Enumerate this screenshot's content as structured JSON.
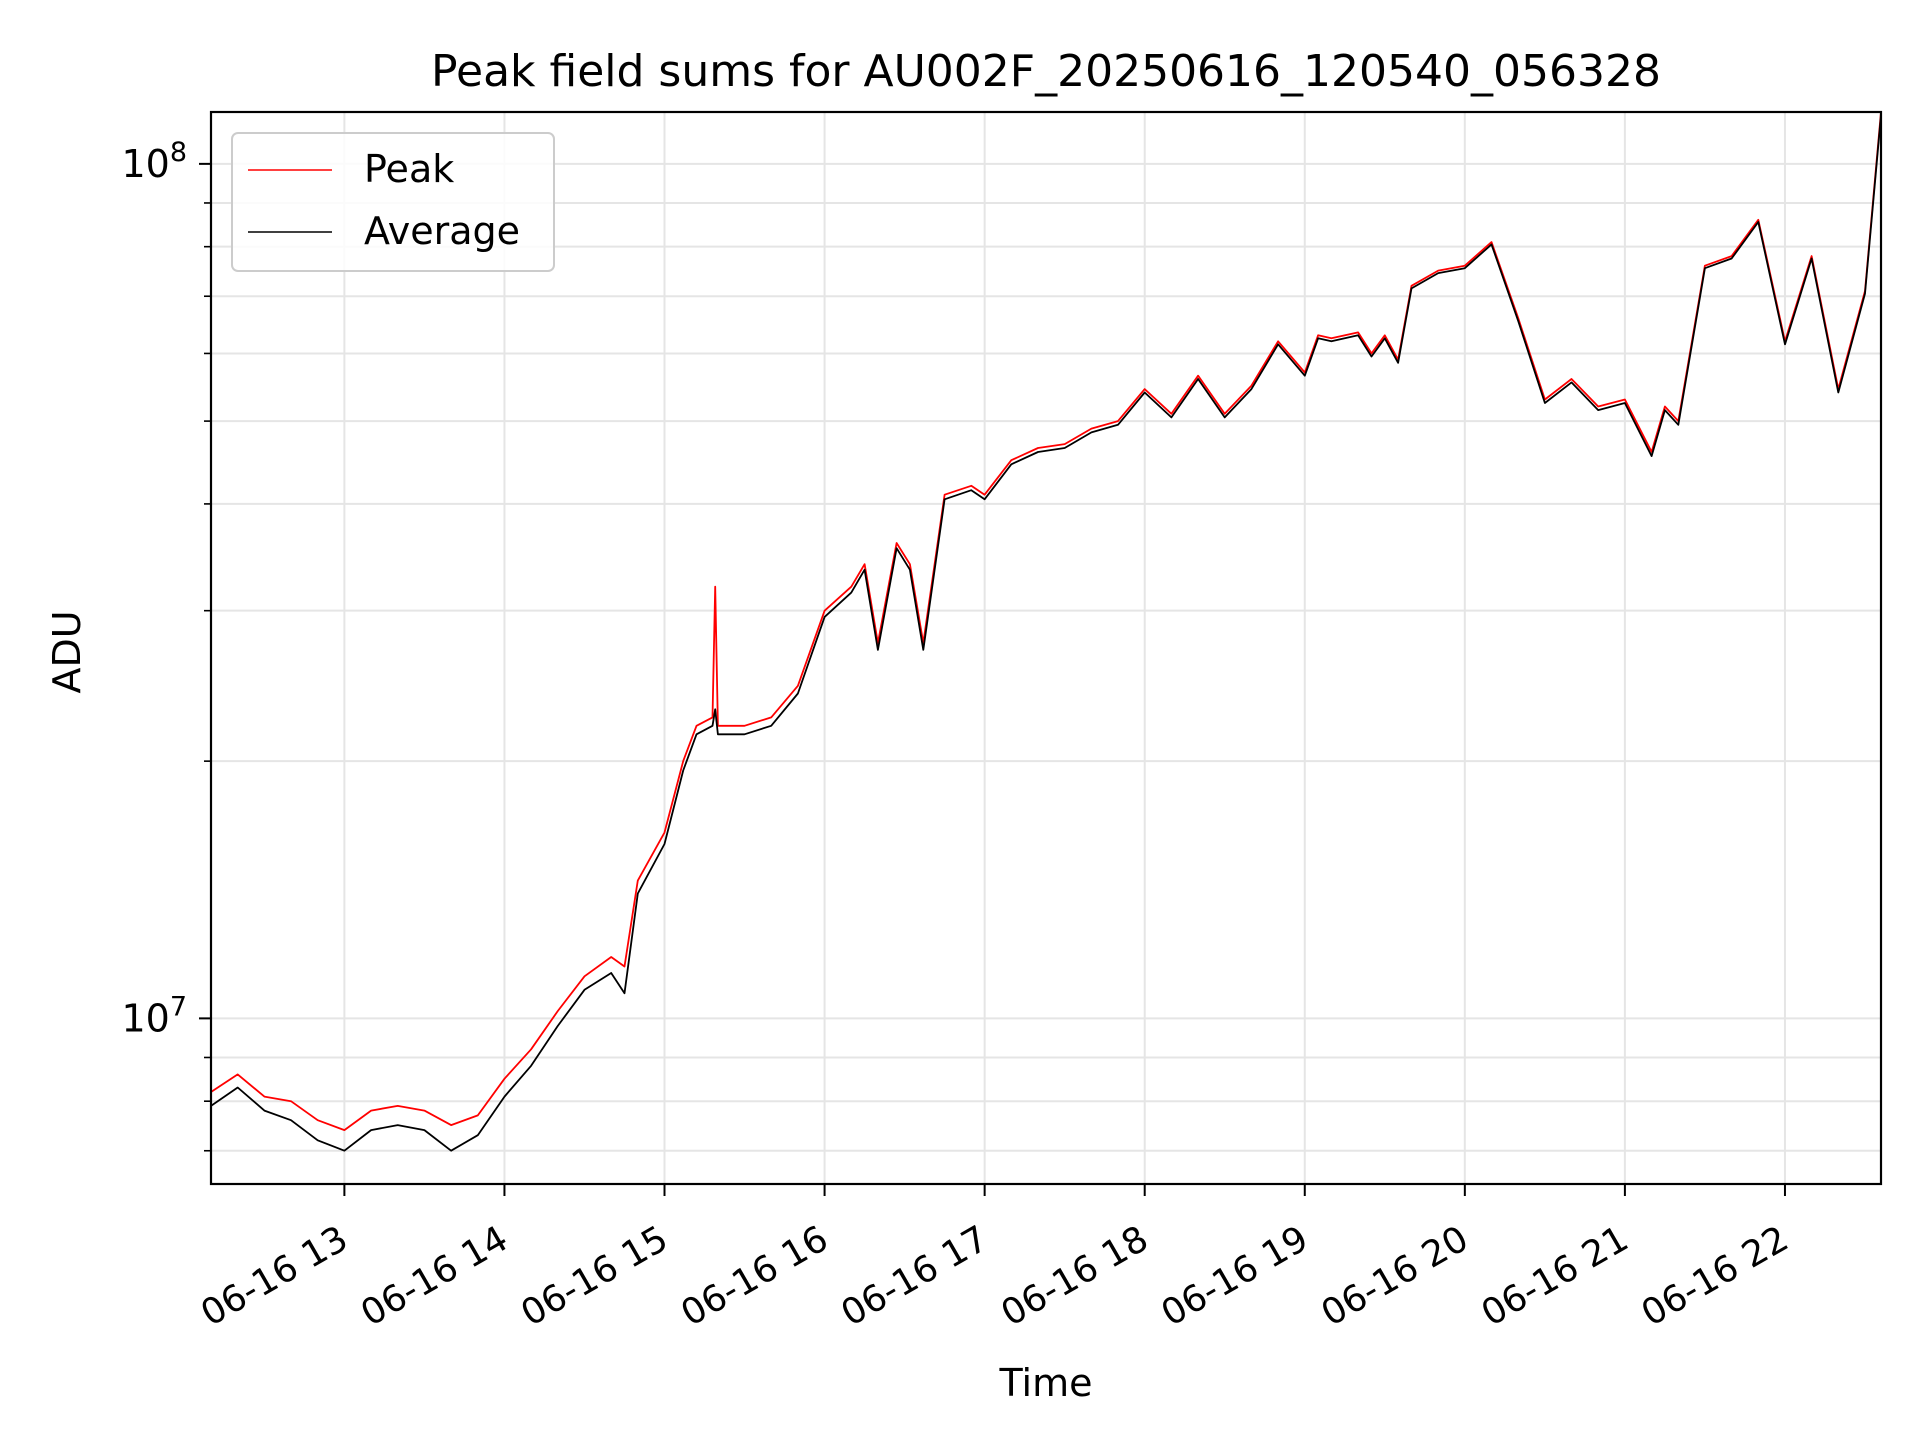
{
  "chart_data": {
    "type": "line",
    "title": "Peak field sums for AU002F_20250616_120540_056328",
    "xlabel": "Time",
    "ylabel": "ADU",
    "y_scale": "log",
    "ylim": [
      6400000,
      115000000
    ],
    "xlim": [
      "06-16 12:10",
      "06-16 22:36"
    ],
    "x_ticks": [
      "06-16 13",
      "06-16 14",
      "06-16 15",
      "06-16 16",
      "06-16 17",
      "06-16 18",
      "06-16 19",
      "06-16 20",
      "06-16 21",
      "06-16 22"
    ],
    "x_tick_times": [
      "06-16 13:00",
      "06-16 14:00",
      "06-16 15:00",
      "06-16 16:00",
      "06-16 17:00",
      "06-16 18:00",
      "06-16 19:00",
      "06-16 20:00",
      "06-16 21:00",
      "06-16 22:00"
    ],
    "y_major_ticks": [
      {
        "value": 10000000,
        "base": "10",
        "exp": "7"
      },
      {
        "value": 100000000,
        "base": "10",
        "exp": "8"
      }
    ],
    "y_minor_ticks": [
      7000000,
      8000000,
      9000000,
      20000000,
      30000000,
      40000000,
      50000000,
      60000000,
      70000000,
      80000000,
      90000000
    ],
    "grid": true,
    "legend_position": "top-left",
    "series": [
      {
        "name": "Peak",
        "color": "#ff0000",
        "x": [
          "06-16 12:10",
          "06-16 12:20",
          "06-16 12:30",
          "06-16 12:40",
          "06-16 12:50",
          "06-16 13:00",
          "06-16 13:10",
          "06-16 13:20",
          "06-16 13:30",
          "06-16 13:40",
          "06-16 13:50",
          "06-16 14:00",
          "06-16 14:10",
          "06-16 14:20",
          "06-16 14:30",
          "06-16 14:40",
          "06-16 14:45",
          "06-16 14:50",
          "06-16 15:00",
          "06-16 15:07",
          "06-16 15:12",
          "06-16 15:18",
          "06-16 15:19",
          "06-16 15:20",
          "06-16 15:30",
          "06-16 15:40",
          "06-16 15:50",
          "06-16 16:00",
          "06-16 16:10",
          "06-16 16:15",
          "06-16 16:20",
          "06-16 16:27",
          "06-16 16:32",
          "06-16 16:37",
          "06-16 16:45",
          "06-16 16:55",
          "06-16 17:00",
          "06-16 17:10",
          "06-16 17:20",
          "06-16 17:30",
          "06-16 17:40",
          "06-16 17:50",
          "06-16 18:00",
          "06-16 18:10",
          "06-16 18:20",
          "06-16 18:30",
          "06-16 18:40",
          "06-16 18:50",
          "06-16 19:00",
          "06-16 19:05",
          "06-16 19:10",
          "06-16 19:20",
          "06-16 19:25",
          "06-16 19:30",
          "06-16 19:35",
          "06-16 19:40",
          "06-16 19:50",
          "06-16 20:00",
          "06-16 20:10",
          "06-16 20:20",
          "06-16 20:30",
          "06-16 20:40",
          "06-16 20:50",
          "06-16 21:00",
          "06-16 21:10",
          "06-16 21:15",
          "06-16 21:20",
          "06-16 21:30",
          "06-16 21:40",
          "06-16 21:50",
          "06-16 22:00",
          "06-16 22:10",
          "06-16 22:20",
          "06-16 22:30",
          "06-16 22:36"
        ],
        "values": [
          8200000,
          8600000,
          8100000,
          8000000,
          7600000,
          7400000,
          7800000,
          7900000,
          7800000,
          7500000,
          7700000,
          8500000,
          9200000,
          10200000,
          11200000,
          11800000,
          11500000,
          14500000,
          16500000,
          20000000,
          22000000,
          22500000,
          32000000,
          22000000,
          22000000,
          22500000,
          24500000,
          30000000,
          32000000,
          34000000,
          27500000,
          36000000,
          34000000,
          27500000,
          41000000,
          42000000,
          41000000,
          45000000,
          46500000,
          47000000,
          49000000,
          50000000,
          54500000,
          51000000,
          56500000,
          51000000,
          55000000,
          62000000,
          57000000,
          63000000,
          62500000,
          63500000,
          60000000,
          63000000,
          59000000,
          72000000,
          75000000,
          76000000,
          81000000,
          66000000,
          53000000,
          56000000,
          52000000,
          53000000,
          46000000,
          52000000,
          50000000,
          76000000,
          78000000,
          86000000,
          62000000,
          78000000,
          54500000,
          71000000,
          115000000
        ]
      },
      {
        "name": "Average",
        "color": "#000000",
        "x": [
          "06-16 12:10",
          "06-16 12:20",
          "06-16 12:30",
          "06-16 12:40",
          "06-16 12:50",
          "06-16 13:00",
          "06-16 13:10",
          "06-16 13:20",
          "06-16 13:30",
          "06-16 13:40",
          "06-16 13:50",
          "06-16 14:00",
          "06-16 14:10",
          "06-16 14:20",
          "06-16 14:30",
          "06-16 14:40",
          "06-16 14:45",
          "06-16 14:50",
          "06-16 15:00",
          "06-16 15:07",
          "06-16 15:12",
          "06-16 15:18",
          "06-16 15:19",
          "06-16 15:20",
          "06-16 15:30",
          "06-16 15:40",
          "06-16 15:50",
          "06-16 16:00",
          "06-16 16:10",
          "06-16 16:15",
          "06-16 16:20",
          "06-16 16:27",
          "06-16 16:32",
          "06-16 16:37",
          "06-16 16:45",
          "06-16 16:55",
          "06-16 17:00",
          "06-16 17:10",
          "06-16 17:20",
          "06-16 17:30",
          "06-16 17:40",
          "06-16 17:50",
          "06-16 18:00",
          "06-16 18:10",
          "06-16 18:20",
          "06-16 18:30",
          "06-16 18:40",
          "06-16 18:50",
          "06-16 19:00",
          "06-16 19:05",
          "06-16 19:10",
          "06-16 19:20",
          "06-16 19:25",
          "06-16 19:30",
          "06-16 19:35",
          "06-16 19:40",
          "06-16 19:50",
          "06-16 20:00",
          "06-16 20:10",
          "06-16 20:20",
          "06-16 20:30",
          "06-16 20:40",
          "06-16 20:50",
          "06-16 21:00",
          "06-16 21:10",
          "06-16 21:15",
          "06-16 21:20",
          "06-16 21:30",
          "06-16 21:40",
          "06-16 21:50",
          "06-16 22:00",
          "06-16 22:10",
          "06-16 22:20",
          "06-16 22:30",
          "06-16 22:36"
        ],
        "values": [
          7900000,
          8300000,
          7800000,
          7600000,
          7200000,
          7000000,
          7400000,
          7500000,
          7400000,
          7000000,
          7300000,
          8100000,
          8800000,
          9800000,
          10800000,
          11300000,
          10700000,
          14000000,
          16000000,
          19500000,
          21500000,
          22000000,
          23000000,
          21500000,
          21500000,
          22000000,
          24000000,
          29500000,
          31500000,
          33500000,
          27000000,
          35500000,
          33500000,
          27000000,
          40500000,
          41500000,
          40500000,
          44500000,
          46000000,
          46500000,
          48500000,
          49500000,
          54000000,
          50500000,
          56000000,
          50500000,
          54500000,
          61500000,
          56500000,
          62500000,
          62000000,
          63000000,
          59500000,
          62500000,
          58500000,
          71500000,
          74500000,
          75500000,
          80500000,
          65500000,
          52500000,
          55500000,
          51500000,
          52500000,
          45500000,
          51500000,
          49500000,
          75500000,
          77500000,
          85500000,
          61500000,
          77500000,
          54000000,
          70500000,
          114000000
        ]
      }
    ]
  }
}
